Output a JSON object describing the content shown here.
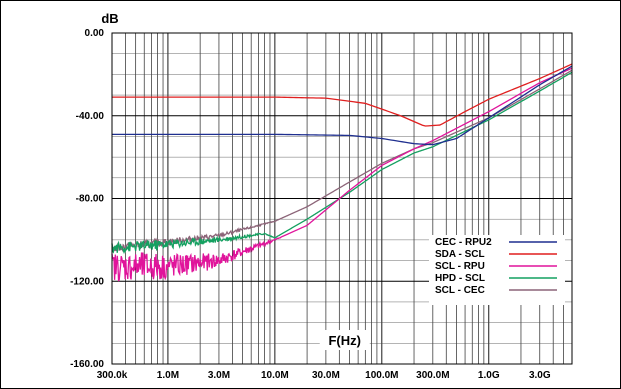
{
  "chart_data": {
    "type": "line",
    "title": "",
    "ylabel": "dB",
    "xlabel": "F(Hz)",
    "x_scale": "log",
    "xlim_hz": [
      300000,
      6000000000
    ],
    "ylim": [
      -160,
      0
    ],
    "grid": true,
    "legend_position": "bottom-right",
    "x_tick_labels": [
      "300.0k",
      "1.0M",
      "3.0M",
      "10.0M",
      "30.0M",
      "100.0M",
      "300.0M",
      "1.0G",
      "3.0G"
    ],
    "x_tick_values_hz": [
      300000,
      1000000,
      3000000,
      10000000,
      30000000,
      100000000,
      300000000,
      1000000000,
      3000000000
    ],
    "y_tick_labels": [
      "0.00",
      "-40.00",
      "-80.00",
      "-120.00",
      "-160.00"
    ],
    "y_tick_values": [
      0,
      -40,
      -80,
      -120,
      -160
    ],
    "series": [
      {
        "name": "CEC - RPU2",
        "color": "#1f2f8f",
        "noise": 0,
        "x_hz": [
          300000,
          10000000,
          50000000,
          100000000,
          200000000,
          300000000,
          500000000,
          1000000000,
          3000000000,
          6000000000
        ],
        "y": [
          -49,
          -49,
          -49.5,
          -51,
          -53.5,
          -54,
          -51,
          -41,
          -25,
          -16
        ]
      },
      {
        "name": "SDA - SCL",
        "color": "#e01f1f",
        "noise": 0,
        "x_hz": [
          300000,
          10000000,
          30000000,
          70000000,
          150000000,
          250000000,
          350000000,
          600000000,
          1000000000,
          3000000000,
          6000000000
        ],
        "y": [
          -31,
          -31,
          -31.5,
          -34,
          -40,
          -45,
          -44.5,
          -38,
          -32,
          -22,
          -15
        ]
      },
      {
        "name": "SCL - RPU",
        "color": "#e0149b",
        "noise": 7,
        "x_hz": [
          300000,
          1000000,
          3000000,
          10000000,
          20000000,
          50000000,
          100000000,
          200000000,
          300000000,
          1000000000,
          3000000000,
          6000000000
        ],
        "y": [
          -113,
          -113,
          -110,
          -100,
          -93,
          -76,
          -64,
          -56,
          -52,
          -38,
          -24,
          -17
        ]
      },
      {
        "name": "HPD - SCL",
        "color": "#14a060",
        "noise": 2.5,
        "x_hz": [
          300000,
          1000000,
          3000000,
          8000000,
          10000000,
          20000000,
          50000000,
          100000000,
          200000000,
          300000000,
          1000000000,
          3000000000,
          6000000000
        ],
        "y": [
          -104,
          -102,
          -100,
          -97,
          -99,
          -90,
          -77,
          -66,
          -58,
          -55,
          -42,
          -28,
          -19
        ]
      },
      {
        "name": "SCL - CEC",
        "color": "#8c6478",
        "noise": 2,
        "x_hz": [
          300000,
          1000000,
          3000000,
          10000000,
          20000000,
          50000000,
          100000000,
          200000000,
          300000000,
          1000000000,
          3000000000,
          6000000000
        ],
        "y": [
          -104,
          -101,
          -98,
          -91,
          -84,
          -72,
          -63,
          -56,
          -53,
          -41,
          -27,
          -18
        ]
      }
    ]
  }
}
